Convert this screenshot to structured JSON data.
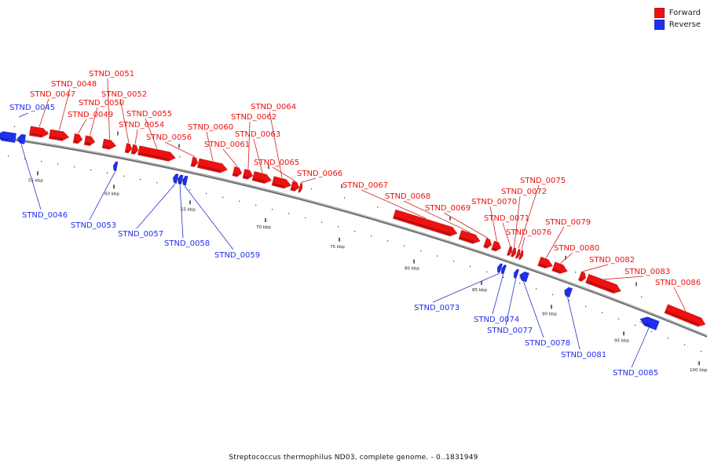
{
  "colors": {
    "forward": "#ee1111",
    "reverse": "#1f2fee",
    "backbone": "#8a8a8a",
    "leader_fwd": "#cc2222",
    "leader_rev": "#2233cc"
  },
  "legend": [
    {
      "label": "Forward",
      "color": "#ee1111"
    },
    {
      "label": "Reverse",
      "color": "#1f2fee"
    }
  ],
  "caption": "Streptococcus thermophilus ND03, complete genome. - 0..1831949",
  "ticks": [
    "55 kbp",
    "60 kbp",
    "65 kbp",
    "70 kbp",
    "75 kbp",
    "80 kbp",
    "85 kbp",
    "90 kbp",
    "95 kbp",
    "100 kbp"
  ],
  "genes_forward": [
    "STND_0047",
    "STND_0048",
    "STND_0049",
    "STND_0050",
    "STND_0051",
    "STND_0052",
    "STND_0054",
    "STND_0055",
    "STND_0056",
    "STND_0060",
    "STND_0061",
    "STND_0062",
    "STND_0063",
    "STND_0064",
    "STND_0065",
    "STND_0066",
    "STND_0067",
    "STND_0068",
    "STND_0069",
    "STND_0070",
    "STND_0071",
    "STND_0072",
    "STND_0075",
    "STND_0076",
    "STND_0079",
    "STND_0080",
    "STND_0082",
    "STND_0083",
    "STND_0086"
  ],
  "genes_reverse": [
    "STND_0045",
    "STND_0046",
    "STND_0053",
    "STND_0057",
    "STND_0058",
    "STND_0059",
    "STND_0073",
    "STND_0074",
    "STND_0077",
    "STND_0078",
    "STND_0081",
    "STND_0085"
  ]
}
